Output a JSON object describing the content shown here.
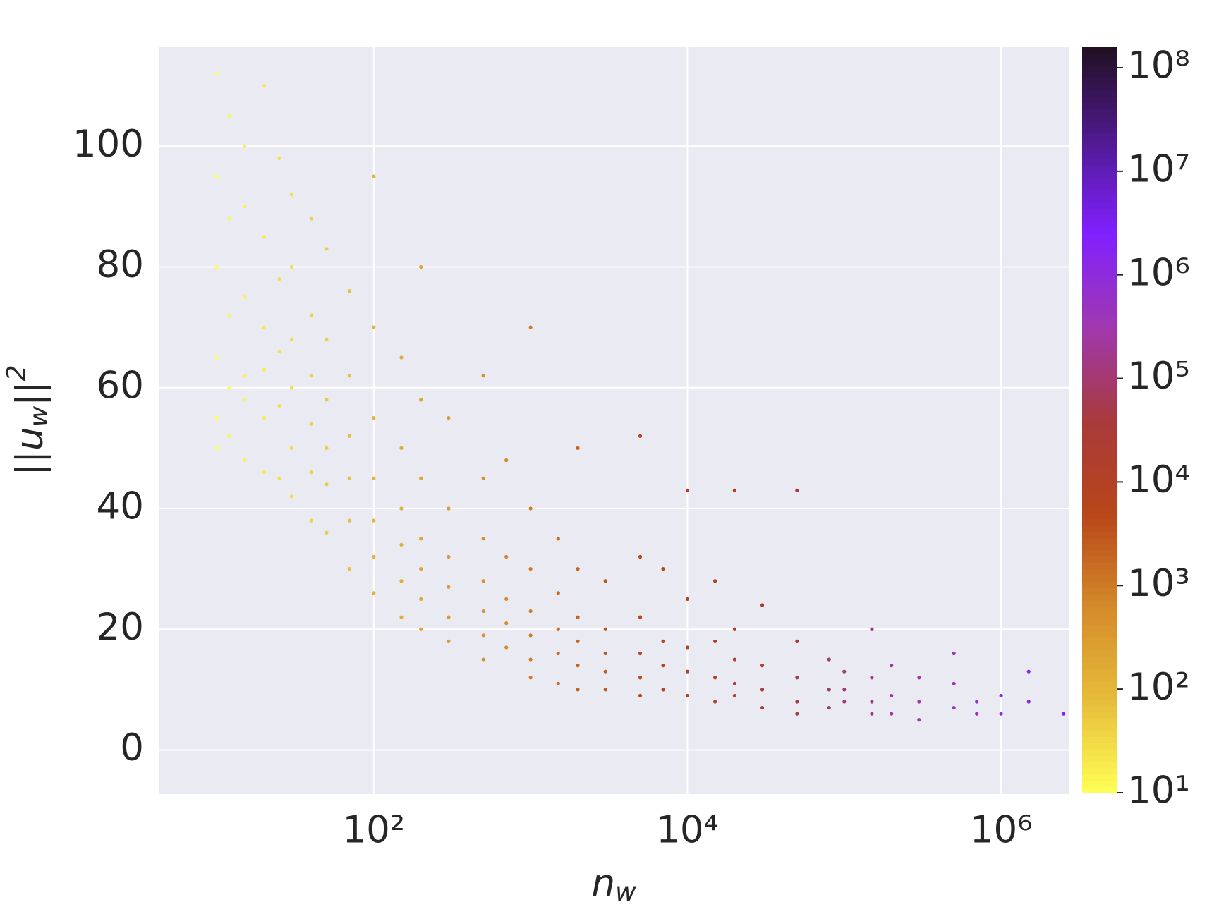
{
  "chart_data": {
    "type": "scatter",
    "x_label": "n_w",
    "y_label": "||u_w||^2",
    "xscale": "log",
    "xlim": [
      4.3,
      2700000
    ],
    "xticks": [
      {
        "value": 100,
        "label": "10²"
      },
      {
        "value": 10000,
        "label": "10⁴"
      },
      {
        "value": 1000000,
        "label": "10⁶"
      }
    ],
    "ylim": [
      -7.3,
      116.5
    ],
    "yticks": [
      0,
      20,
      40,
      60,
      80,
      100
    ],
    "grid": true,
    "colorbar": {
      "scale": "log",
      "lim": [
        10,
        160000000
      ],
      "ticks": [
        {
          "value": 10,
          "label": "10¹"
        },
        {
          "value": 100,
          "label": "10²"
        },
        {
          "value": 1000,
          "label": "10³"
        },
        {
          "value": 10000,
          "label": "10⁴"
        },
        {
          "value": 100000,
          "label": "10⁵"
        },
        {
          "value": 1000000,
          "label": "10⁶"
        },
        {
          "value": 10000000,
          "label": "10⁷"
        },
        {
          "value": 100000000,
          "label": "10⁸"
        }
      ],
      "colormap": [
        "#ffff55",
        "#e6bc3a",
        "#d48a2a",
        "#b8461a",
        "#a83a3c",
        "#a038b0",
        "#8020ff",
        "#501a90",
        "#201020"
      ]
    },
    "x": [
      10,
      10,
      10,
      10,
      10,
      10,
      12,
      12,
      12,
      12,
      12,
      15,
      15,
      15,
      15,
      15,
      15,
      20,
      20,
      20,
      20,
      20,
      20,
      25,
      25,
      25,
      25,
      25,
      30,
      30,
      30,
      30,
      30,
      30,
      40,
      40,
      40,
      40,
      40,
      40,
      50,
      50,
      50,
      50,
      50,
      50,
      70,
      70,
      70,
      70,
      70,
      70,
      100,
      100,
      100,
      100,
      100,
      100,
      100,
      150,
      150,
      150,
      150,
      150,
      150,
      200,
      200,
      200,
      200,
      200,
      200,
      200,
      300,
      300,
      300,
      300,
      300,
      300,
      500,
      500,
      500,
      500,
      500,
      500,
      500,
      700,
      700,
      700,
      700,
      700,
      1000,
      1000,
      1000,
      1000,
      1000,
      1000,
      1000,
      1500,
      1500,
      1500,
      1500,
      1500,
      2000,
      2000,
      2000,
      2000,
      2000,
      2000,
      3000,
      3000,
      3000,
      3000,
      3000,
      5000,
      5000,
      5000,
      5000,
      5000,
      5000,
      7000,
      7000,
      7000,
      7000,
      10000,
      10000,
      10000,
      10000,
      10000,
      15000,
      15000,
      15000,
      15000,
      20000,
      20000,
      20000,
      20000,
      20000,
      30000,
      30000,
      30000,
      30000,
      50000,
      50000,
      50000,
      50000,
      50000,
      80000,
      80000,
      80000,
      100000,
      100000,
      100000,
      150000,
      150000,
      150000,
      150000,
      200000,
      200000,
      200000,
      300000,
      300000,
      300000,
      500000,
      500000,
      500000,
      700000,
      700000,
      1000000,
      1000000,
      1500000,
      1500000,
      2500000
    ],
    "y": [
      112,
      95,
      80,
      65,
      55,
      50,
      105,
      88,
      72,
      60,
      52,
      100,
      90,
      75,
      62,
      58,
      48,
      110,
      85,
      70,
      63,
      55,
      46,
      98,
      78,
      66,
      57,
      45,
      92,
      80,
      68,
      60,
      50,
      42,
      88,
      72,
      62,
      54,
      46,
      38,
      83,
      68,
      58,
      50,
      44,
      36,
      76,
      62,
      52,
      45,
      38,
      30,
      95,
      70,
      55,
      45,
      38,
      32,
      26,
      65,
      50,
      40,
      34,
      28,
      22,
      80,
      58,
      45,
      35,
      30,
      25,
      20,
      55,
      40,
      32,
      27,
      22,
      18,
      62,
      45,
      35,
      28,
      23,
      19,
      15,
      48,
      32,
      25,
      21,
      17,
      70,
      40,
      30,
      23,
      19,
      15,
      12,
      35,
      26,
      20,
      16,
      11,
      50,
      30,
      22,
      18,
      14,
      10,
      28,
      20,
      16,
      13,
      10,
      52,
      32,
      22,
      16,
      12,
      9,
      30,
      18,
      14,
      10,
      43,
      25,
      17,
      13,
      9,
      28,
      18,
      12,
      8,
      43,
      20,
      15,
      11,
      9,
      24,
      14,
      10,
      7,
      43,
      18,
      12,
      8,
      6,
      15,
      10,
      7,
      13,
      10,
      8,
      20,
      12,
      8,
      6,
      14,
      9,
      6,
      12,
      8,
      5,
      16,
      11,
      7,
      8,
      6,
      9,
      6,
      13,
      8,
      6
    ]
  }
}
